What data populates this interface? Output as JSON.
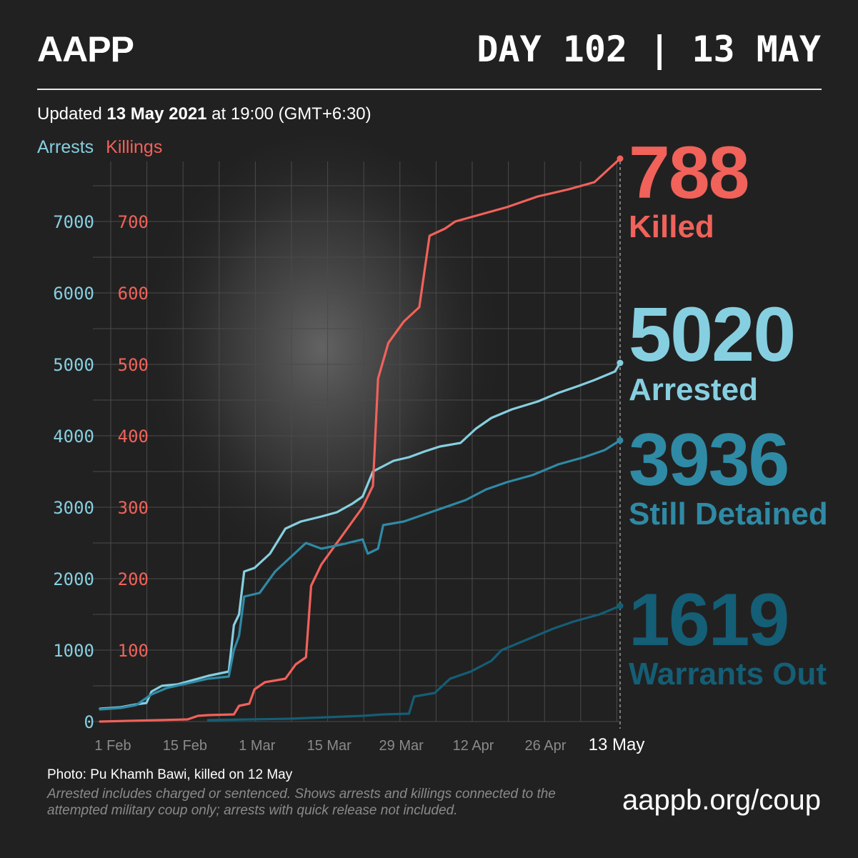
{
  "header": {
    "logo": "AAPP",
    "day": "DAY 102 | 13 MAY"
  },
  "updated": {
    "prefix": "Updated ",
    "date": "13 May 2021",
    "suffix": " at 19:00 (GMT+6:30)"
  },
  "legend": {
    "arrests": "Arrests",
    "killings": "Killings"
  },
  "stats": {
    "killed": {
      "value": "788",
      "label": "Killed"
    },
    "arrested": {
      "value": "5020",
      "label": "Arrested"
    },
    "detained": {
      "value": "3936",
      "label": "Still Detained"
    },
    "warrants": {
      "value": "1619",
      "label": "Warrants Out"
    }
  },
  "footer": {
    "photo_credit": "Photo: Pu Khamh Bawi, killed on 12 May",
    "note": "Arrested includes charged or sentenced. Shows arrests and killings connected to the attempted military coup only; arrests with quick release not included.",
    "url": "aappb.org/coup"
  },
  "colors": {
    "arrests": "#86cfe0",
    "killings": "#f0625a",
    "detained": "#2f8aa5",
    "warrants": "#145e76",
    "background": "#222121"
  },
  "chart_data": {
    "type": "line",
    "x_unit": "date (2021)",
    "x_ticks": [
      "1 Feb",
      "15 Feb",
      "1 Mar",
      "15 Mar",
      "29 Mar",
      "12 Apr",
      "26 Apr",
      "13 May"
    ],
    "x_tick_dates": [
      "2021-02-01",
      "2021-02-15",
      "2021-03-01",
      "2021-03-15",
      "2021-03-29",
      "2021-04-12",
      "2021-04-26",
      "2021-05-13"
    ],
    "left_axis": {
      "label": "Arrests",
      "ticks": [
        0,
        1000,
        2000,
        3000,
        4000,
        5000,
        6000,
        7000
      ],
      "ylim": [
        0,
        7600
      ]
    },
    "right_axis": {
      "label": "Killings",
      "ticks": [
        0,
        100,
        200,
        300,
        400,
        500,
        600,
        700
      ],
      "ylim": [
        0,
        760
      ]
    },
    "grid": true,
    "series": [
      {
        "name": "Arrests",
        "axis": "left",
        "points": [
          [
            "2021-02-01",
            180
          ],
          [
            "2021-02-05",
            200
          ],
          [
            "2021-02-08",
            240
          ],
          [
            "2021-02-10",
            260
          ],
          [
            "2021-02-11",
            420
          ],
          [
            "2021-02-13",
            500
          ],
          [
            "2021-02-16",
            520
          ],
          [
            "2021-02-19",
            580
          ],
          [
            "2021-02-22",
            640
          ],
          [
            "2021-02-26",
            700
          ],
          [
            "2021-02-27",
            1350
          ],
          [
            "2021-02-28",
            1500
          ],
          [
            "2021-03-01",
            2100
          ],
          [
            "2021-03-03",
            2150
          ],
          [
            "2021-03-06",
            2350
          ],
          [
            "2021-03-09",
            2700
          ],
          [
            "2021-03-12",
            2800
          ],
          [
            "2021-03-16",
            2870
          ],
          [
            "2021-03-19",
            2930
          ],
          [
            "2021-03-22",
            3050
          ],
          [
            "2021-03-24",
            3150
          ],
          [
            "2021-03-26",
            3500
          ],
          [
            "2021-03-30",
            3650
          ],
          [
            "2021-04-02",
            3700
          ],
          [
            "2021-04-05",
            3780
          ],
          [
            "2021-04-08",
            3850
          ],
          [
            "2021-04-12",
            3900
          ],
          [
            "2021-04-15",
            4100
          ],
          [
            "2021-04-18",
            4250
          ],
          [
            "2021-04-22",
            4370
          ],
          [
            "2021-04-27",
            4480
          ],
          [
            "2021-05-01",
            4600
          ],
          [
            "2021-05-05",
            4700
          ],
          [
            "2021-05-08",
            4780
          ],
          [
            "2021-05-12",
            4900
          ],
          [
            "2021-05-13",
            5020
          ]
        ]
      },
      {
        "name": "Killings",
        "axis": "right",
        "points": [
          [
            "2021-02-01",
            0
          ],
          [
            "2021-02-18",
            3
          ],
          [
            "2021-02-20",
            8
          ],
          [
            "2021-02-22",
            9
          ],
          [
            "2021-02-27",
            10
          ],
          [
            "2021-02-28",
            22
          ],
          [
            "2021-03-02",
            25
          ],
          [
            "2021-03-03",
            45
          ],
          [
            "2021-03-05",
            55
          ],
          [
            "2021-03-09",
            60
          ],
          [
            "2021-03-11",
            80
          ],
          [
            "2021-03-13",
            90
          ],
          [
            "2021-03-14",
            190
          ],
          [
            "2021-03-16",
            220
          ],
          [
            "2021-03-20",
            260
          ],
          [
            "2021-03-24",
            300
          ],
          [
            "2021-03-26",
            330
          ],
          [
            "2021-03-27",
            480
          ],
          [
            "2021-03-29",
            530
          ],
          [
            "2021-04-01",
            560
          ],
          [
            "2021-04-04",
            580
          ],
          [
            "2021-04-06",
            680
          ],
          [
            "2021-04-09",
            690
          ],
          [
            "2021-04-11",
            700
          ],
          [
            "2021-04-16",
            710
          ],
          [
            "2021-04-21",
            720
          ],
          [
            "2021-04-27",
            735
          ],
          [
            "2021-05-03",
            745
          ],
          [
            "2021-05-08",
            755
          ],
          [
            "2021-05-13",
            788
          ]
        ]
      },
      {
        "name": "Still Detained",
        "axis": "left",
        "points": [
          [
            "2021-02-01",
            170
          ],
          [
            "2021-02-05",
            190
          ],
          [
            "2021-02-08",
            230
          ],
          [
            "2021-02-11",
            380
          ],
          [
            "2021-02-14",
            470
          ],
          [
            "2021-02-19",
            550
          ],
          [
            "2021-02-22",
            600
          ],
          [
            "2021-02-26",
            630
          ],
          [
            "2021-02-27",
            1000
          ],
          [
            "2021-02-28",
            1200
          ],
          [
            "2021-03-01",
            1750
          ],
          [
            "2021-03-04",
            1800
          ],
          [
            "2021-03-07",
            2100
          ],
          [
            "2021-03-10",
            2300
          ],
          [
            "2021-03-13",
            2500
          ],
          [
            "2021-03-16",
            2420
          ],
          [
            "2021-03-20",
            2480
          ],
          [
            "2021-03-24",
            2550
          ],
          [
            "2021-03-25",
            2350
          ],
          [
            "2021-03-27",
            2420
          ],
          [
            "2021-03-28",
            2750
          ],
          [
            "2021-04-01",
            2800
          ],
          [
            "2021-04-05",
            2900
          ],
          [
            "2021-04-09",
            3000
          ],
          [
            "2021-04-13",
            3100
          ],
          [
            "2021-04-17",
            3250
          ],
          [
            "2021-04-21",
            3350
          ],
          [
            "2021-04-26",
            3450
          ],
          [
            "2021-05-01",
            3600
          ],
          [
            "2021-05-06",
            3700
          ],
          [
            "2021-05-10",
            3800
          ],
          [
            "2021-05-13",
            3936
          ]
        ]
      },
      {
        "name": "Warrants Out",
        "axis": "left",
        "points": [
          [
            "2021-02-22",
            20
          ],
          [
            "2021-03-10",
            40
          ],
          [
            "2021-03-24",
            80
          ],
          [
            "2021-03-28",
            100
          ],
          [
            "2021-04-02",
            110
          ],
          [
            "2021-04-03",
            350
          ],
          [
            "2021-04-07",
            400
          ],
          [
            "2021-04-10",
            600
          ],
          [
            "2021-04-14",
            700
          ],
          [
            "2021-04-18",
            850
          ],
          [
            "2021-04-20",
            1000
          ],
          [
            "2021-04-25",
            1150
          ],
          [
            "2021-04-30",
            1300
          ],
          [
            "2021-05-04",
            1400
          ],
          [
            "2021-05-09",
            1500
          ],
          [
            "2021-05-13",
            1619
          ]
        ]
      }
    ]
  }
}
